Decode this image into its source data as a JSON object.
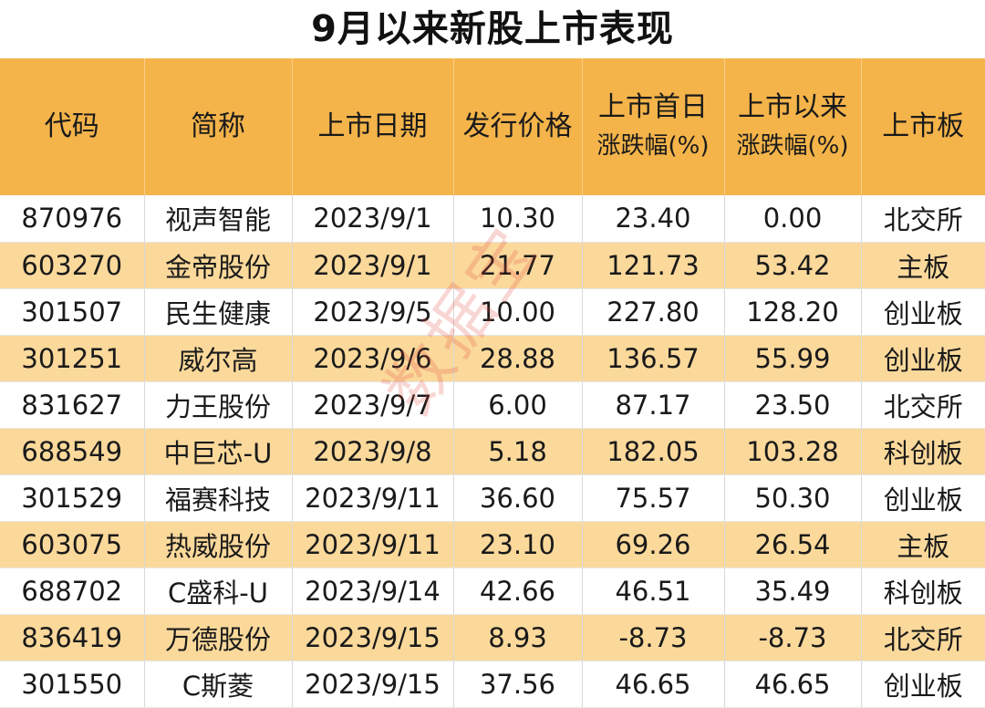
{
  "chart_data": {
    "type": "table",
    "title": "9月以来新股上市表现",
    "columns": [
      "代码",
      "简称",
      "上市日期",
      "发行价格",
      "上市首日涨跌幅(%)",
      "上市以来涨跌幅(%)",
      "上市板"
    ],
    "rows": [
      [
        "870976",
        "视声智能",
        "2023/9/1",
        "10.30",
        "23.40",
        "0.00",
        "北交所"
      ],
      [
        "603270",
        "金帝股份",
        "2023/9/1",
        "21.77",
        "121.73",
        "53.42",
        "主板"
      ],
      [
        "301507",
        "民生健康",
        "2023/9/5",
        "10.00",
        "227.80",
        "128.20",
        "创业板"
      ],
      [
        "301251",
        "威尔高",
        "2023/9/6",
        "28.88",
        "136.57",
        "55.99",
        "创业板"
      ],
      [
        "831627",
        "力王股份",
        "2023/9/7",
        "6.00",
        "87.17",
        "23.50",
        "北交所"
      ],
      [
        "688549",
        "中巨芯-U",
        "2023/9/8",
        "5.18",
        "182.05",
        "103.28",
        "科创板"
      ],
      [
        "301529",
        "福赛科技",
        "2023/9/11",
        "36.60",
        "75.57",
        "50.30",
        "创业板"
      ],
      [
        "603075",
        "热威股份",
        "2023/9/11",
        "23.10",
        "69.26",
        "26.54",
        "主板"
      ],
      [
        "688702",
        "C盛科-U",
        "2023/9/14",
        "42.66",
        "46.51",
        "35.49",
        "科创板"
      ],
      [
        "836419",
        "万德股份",
        "2023/9/15",
        "8.93",
        "-8.73",
        "-8.73",
        "北交所"
      ],
      [
        "301550",
        "C斯菱",
        "2023/9/15",
        "37.56",
        "46.65",
        "46.65",
        "创业板"
      ]
    ]
  },
  "header": {
    "code": "代码",
    "name": "简称",
    "date": "上市日期",
    "price": "发行价格",
    "first_day_l1": "上市首日",
    "first_day_l2": "涨跌幅(%)",
    "since_l1": "上市以来",
    "since_l2": "涨跌幅(%)",
    "board": "上市板"
  },
  "watermark": "数据宝",
  "colors": {
    "header_bg": "#f4b44a",
    "stripe_bg": "#fbd99b",
    "watermark": "#de463c"
  }
}
